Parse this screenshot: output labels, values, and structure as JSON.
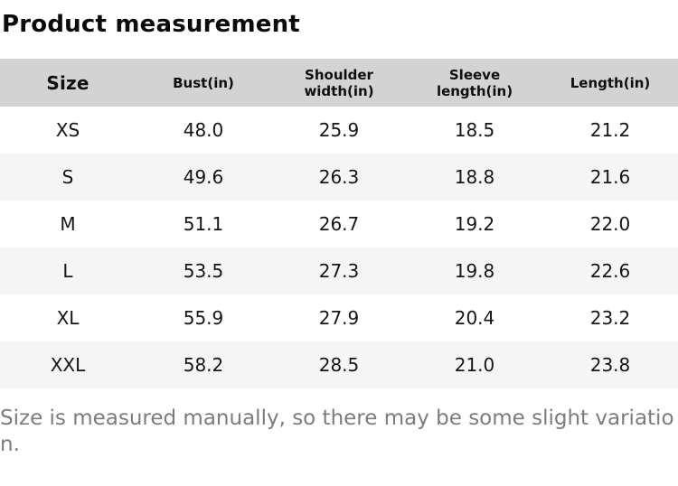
{
  "chart_data": {
    "type": "table",
    "title": "Product measurement",
    "columns": [
      "Size",
      "Bust(in)",
      "Shoulder width(in)",
      "Sleeve length(in)",
      "Length(in)"
    ],
    "rows": [
      [
        "XS",
        "48.0",
        "25.9",
        "18.5",
        "21.2"
      ],
      [
        "S",
        "49.6",
        "26.3",
        "18.8",
        "21.6"
      ],
      [
        "M",
        "51.1",
        "26.7",
        "19.2",
        "22.0"
      ],
      [
        "L",
        "53.5",
        "27.3",
        "19.8",
        "22.6"
      ],
      [
        "XL",
        "55.9",
        "27.9",
        "20.4",
        "23.2"
      ],
      [
        "XXL",
        "58.2",
        "28.5",
        "21.0",
        "23.8"
      ]
    ],
    "note": "Size is measured manually, so there may be some slight variation.",
    "layout": {
      "columns_equal_width": true,
      "cell_alignment": "center",
      "striped_rows": true
    }
  },
  "colors": {
    "header_bg": "#d3d3d3",
    "stripe_bg": "#f5f5f5",
    "text": "#151515",
    "note_text": "#7c7c7c",
    "page_bg": "#ffffff"
  }
}
